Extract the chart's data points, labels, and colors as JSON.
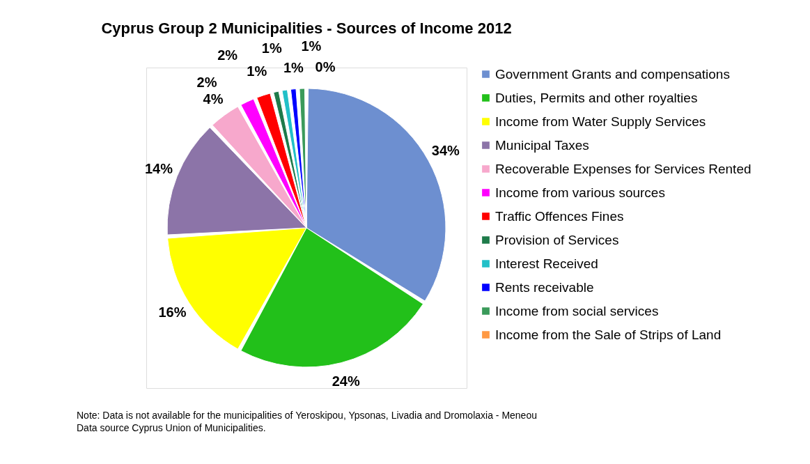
{
  "chart_data": {
    "type": "pie",
    "title": "Cyprus Group 2 Municipalities - Sources of Income 2012",
    "categories": [
      "Government Grants and compensations",
      "Duties, Permits and other royalties",
      "Income from Water Supply Services",
      "Municipal Taxes",
      "Recoverable Expenses for Services Rented",
      "Income from various sources",
      "Traffic Offences Fines",
      "Provision of Services",
      "Interest Received",
      "Rents receivable",
      "Income from social services",
      "Income from the Sale of Strips of Land"
    ],
    "values": [
      34,
      24,
      16,
      14,
      4,
      2,
      2,
      1,
      1,
      1,
      1,
      0
    ],
    "value_labels": [
      "34%",
      "24%",
      "16%",
      "14%",
      "4%",
      "2%",
      "2%",
      "1%",
      "1%",
      "1%",
      "1%",
      "0%"
    ],
    "colors": [
      "#6d8fd0",
      "#22c01a",
      "#ffff00",
      "#8c74a8",
      "#f7a8cc",
      "#ff00ff",
      "#ff0000",
      "#1e7b4a",
      "#22c0c8",
      "#0000ff",
      "#3a9a5a",
      "#ff9944"
    ],
    "legend": "right",
    "annotations": [
      "Note: Data is not available for the municipalities of Yeroskipou, Ypsonas, Livadia and Dromolaxia - Meneou",
      "Data source Cyprus Union of Municipalities."
    ]
  }
}
